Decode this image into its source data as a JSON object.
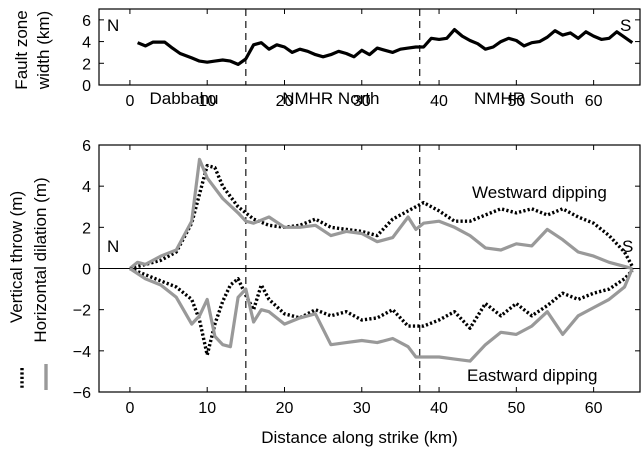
{
  "chart_data": [
    {
      "type": "line",
      "ylabel_lines": [
        "Fault zone",
        "width (km)"
      ],
      "ylim": [
        0,
        7
      ],
      "xlim": [
        -4,
        66
      ],
      "yticks": [
        0,
        2,
        4,
        6
      ],
      "xticks": [
        0,
        10,
        20,
        30,
        40,
        50,
        60
      ],
      "grid": false,
      "corner_labels": {
        "left": "N",
        "right": "S"
      },
      "segment_labels": [
        {
          "text": "Dabbahu",
          "x": 7
        },
        {
          "text": "NMHR North",
          "x": 26
        },
        {
          "text": "NMHR South",
          "x": 51
        }
      ],
      "boundaries": [
        15,
        37.5
      ],
      "series": [
        {
          "color": "#000000",
          "style": "solid",
          "x": [
            1,
            2,
            3,
            4.5,
            5.5,
            6.5,
            8,
            9,
            10,
            11,
            12,
            13,
            14,
            15,
            16,
            17,
            18,
            19,
            20,
            21,
            22,
            23,
            24,
            25,
            26,
            27,
            28,
            29,
            30,
            31,
            32,
            33,
            34,
            35,
            36,
            37,
            38,
            39,
            40,
            41,
            42,
            43,
            44,
            45,
            46,
            47,
            48,
            49,
            50,
            51,
            52,
            53,
            54,
            55,
            56,
            57,
            58,
            59,
            60,
            61,
            62,
            63,
            64,
            65
          ],
          "values": [
            3.9,
            3.6,
            3.95,
            3.95,
            3.4,
            2.9,
            2.5,
            2.2,
            2.1,
            2.2,
            2.3,
            2.2,
            1.9,
            2.4,
            3.7,
            3.9,
            3.3,
            3.7,
            3.5,
            3.0,
            3.3,
            3.1,
            2.8,
            2.6,
            2.8,
            3.1,
            2.9,
            2.6,
            3.2,
            2.8,
            3.4,
            3.2,
            3.0,
            3.3,
            3.4,
            3.5,
            3.5,
            4.3,
            4.2,
            4.3,
            5.1,
            4.5,
            4.1,
            3.8,
            3.3,
            3.5,
            4.0,
            4.3,
            4.1,
            3.6,
            3.9,
            4.0,
            4.4,
            5.0,
            4.6,
            4.8,
            4.3,
            4.9,
            4.5,
            4.2,
            4.3,
            4.9,
            4.4,
            3.9
          ]
        }
      ]
    },
    {
      "type": "line",
      "xlabel": "Distance along strike (km)",
      "ylabel_lines": [
        "Vertical throw (m)",
        "Horizontal dilation (m)"
      ],
      "ylim": [
        -6,
        6
      ],
      "xlim": [
        -4,
        66
      ],
      "yticks": [
        -6,
        -4,
        -2,
        0,
        2,
        4,
        6
      ],
      "xticks": [
        0,
        10,
        20,
        30,
        40,
        50,
        60
      ],
      "grid": false,
      "corner_labels": {
        "left": "N",
        "right": "S"
      },
      "annotations": [
        "Westward dipping",
        "Eastward dipping"
      ],
      "boundaries": [
        15,
        37.5
      ],
      "zero_line": true,
      "legend": {
        "placement": "left vertical",
        "entries": [
          {
            "style": "dotted",
            "color": "#000000"
          },
          {
            "style": "solid",
            "color": "#999999"
          }
        ]
      },
      "series": [
        {
          "color": "#000000",
          "style": "dotted",
          "x": [
            0,
            2,
            4,
            6,
            8,
            10,
            11,
            12,
            14,
            16,
            18,
            20,
            22,
            24,
            26,
            28,
            30,
            32,
            34,
            36,
            38,
            40,
            42,
            44,
            46,
            48,
            50,
            52,
            54,
            56,
            58,
            60,
            62,
            64,
            65
          ],
          "values": [
            0,
            0.2,
            0.4,
            0.8,
            2.2,
            5.0,
            4.9,
            4.0,
            3.0,
            2.4,
            2.1,
            2.0,
            2.1,
            2.4,
            2.0,
            1.9,
            1.8,
            1.6,
            2.4,
            2.8,
            3.2,
            2.8,
            2.3,
            2.3,
            2.6,
            2.9,
            2.7,
            2.9,
            2.6,
            2.9,
            2.5,
            2.2,
            1.6,
            0.8,
            0.1
          ]
        },
        {
          "color": "#999999",
          "style": "solid",
          "x": [
            0,
            1,
            2,
            4,
            6,
            8,
            9,
            10,
            12,
            14,
            15,
            16,
            18,
            20,
            22,
            24,
            26,
            28,
            30,
            32,
            34,
            36,
            37,
            38,
            40,
            42,
            44,
            46,
            48,
            50,
            52,
            54,
            56,
            58,
            60,
            62,
            64,
            65
          ],
          "values": [
            0,
            0.3,
            0.2,
            0.6,
            0.9,
            2.3,
            5.3,
            4.4,
            3.4,
            2.7,
            2.3,
            2.2,
            2.5,
            2.0,
            2.0,
            2.1,
            1.6,
            1.8,
            1.7,
            1.3,
            1.5,
            2.5,
            1.9,
            2.2,
            2.3,
            2.0,
            1.6,
            1.0,
            0.9,
            1.2,
            1.1,
            1.9,
            1.4,
            0.8,
            0.6,
            0.3,
            0.1,
            0.0
          ]
        },
        {
          "color": "#000000",
          "style": "dotted",
          "x": [
            0,
            2,
            4,
            6,
            8,
            9,
            10,
            11,
            12,
            13,
            14,
            15,
            16,
            17,
            18,
            20,
            22,
            24,
            26,
            28,
            30,
            32,
            34,
            36,
            38,
            40,
            42,
            44,
            46,
            48,
            50,
            52,
            54,
            56,
            58,
            60,
            62,
            64,
            65
          ],
          "values": [
            0,
            -0.3,
            -0.6,
            -0.9,
            -1.5,
            -2.5,
            -4.2,
            -2.7,
            -1.6,
            -0.8,
            -0.5,
            -1.3,
            -2.0,
            -0.8,
            -1.5,
            -2.2,
            -2.4,
            -2.0,
            -2.3,
            -2.1,
            -2.5,
            -2.4,
            -2.0,
            -2.8,
            -2.8,
            -2.5,
            -2.1,
            -2.9,
            -1.7,
            -2.3,
            -1.7,
            -2.3,
            -1.8,
            -1.2,
            -1.5,
            -1.2,
            -1.0,
            -0.5,
            -0.1
          ]
        },
        {
          "color": "#999999",
          "style": "solid",
          "x": [
            0,
            2,
            4,
            6,
            8,
            9,
            10,
            11,
            12,
            13,
            14,
            15,
            16,
            17,
            18,
            20,
            22,
            24,
            26,
            28,
            30,
            32,
            34,
            36,
            37,
            38,
            40,
            42,
            44,
            46,
            48,
            50,
            52,
            54,
            56,
            58,
            60,
            62,
            64,
            65
          ],
          "values": [
            0,
            -0.5,
            -0.8,
            -1.4,
            -2.7,
            -2.3,
            -1.5,
            -3.3,
            -3.7,
            -3.8,
            -1.4,
            -1.0,
            -2.6,
            -2.0,
            -2.1,
            -2.7,
            -2.4,
            -2.2,
            -3.7,
            -3.6,
            -3.5,
            -3.6,
            -3.4,
            -3.8,
            -4.3,
            -4.3,
            -4.3,
            -4.4,
            -4.5,
            -3.7,
            -3.1,
            -3.2,
            -2.8,
            -2.1,
            -3.2,
            -2.3,
            -1.9,
            -1.5,
            -0.9,
            0.0
          ]
        }
      ]
    }
  ]
}
